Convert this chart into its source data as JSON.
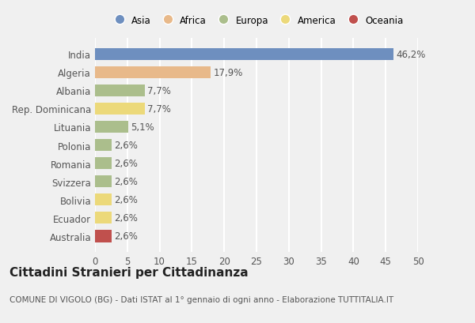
{
  "countries": [
    "India",
    "Algeria",
    "Albania",
    "Rep. Dominicana",
    "Lituania",
    "Polonia",
    "Romania",
    "Svizzera",
    "Bolivia",
    "Ecuador",
    "Australia"
  ],
  "values": [
    46.2,
    17.9,
    7.7,
    7.7,
    5.1,
    2.6,
    2.6,
    2.6,
    2.6,
    2.6,
    2.6
  ],
  "labels": [
    "46,2%",
    "17,9%",
    "7,7%",
    "7,7%",
    "5,1%",
    "2,6%",
    "2,6%",
    "2,6%",
    "2,6%",
    "2,6%",
    "2,6%"
  ],
  "colors": [
    "#6e8fbf",
    "#e8b98a",
    "#abbe8c",
    "#ecd97a",
    "#abbe8c",
    "#abbe8c",
    "#abbe8c",
    "#abbe8c",
    "#ecd97a",
    "#ecd97a",
    "#c0504d"
  ],
  "legend_labels": [
    "Asia",
    "Africa",
    "Europa",
    "America",
    "Oceania"
  ],
  "legend_colors": [
    "#6e8fbf",
    "#e8b98a",
    "#abbe8c",
    "#ecd97a",
    "#c0504d"
  ],
  "xlim": [
    0,
    50
  ],
  "xticks": [
    0,
    5,
    10,
    15,
    20,
    25,
    30,
    35,
    40,
    45,
    50
  ],
  "title": "Cittadini Stranieri per Cittadinanza",
  "subtitle": "COMUNE DI VIGOLO (BG) - Dati ISTAT al 1° gennaio di ogni anno - Elaborazione TUTTITALIA.IT",
  "bg_color": "#f0f0f0",
  "bar_height": 0.65,
  "grid_color": "#ffffff",
  "label_fontsize": 8.5,
  "title_fontsize": 11,
  "subtitle_fontsize": 7.5,
  "tick_fontsize": 8.5
}
